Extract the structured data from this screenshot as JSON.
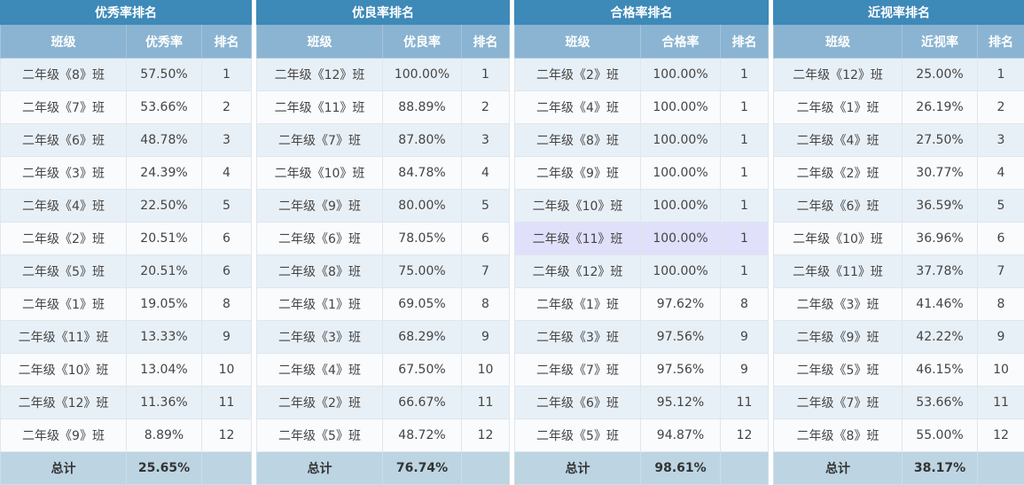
{
  "panels": [
    {
      "title": "优秀率排名",
      "headers": [
        "班级",
        "优秀率",
        "排名"
      ],
      "rows": [
        [
          "二年级《8》班",
          "57.50%",
          "1"
        ],
        [
          "二年级《7》班",
          "53.66%",
          "2"
        ],
        [
          "二年级《6》班",
          "48.78%",
          "3"
        ],
        [
          "二年级《3》班",
          "24.39%",
          "4"
        ],
        [
          "二年级《4》班",
          "22.50%",
          "5"
        ],
        [
          "二年级《2》班",
          "20.51%",
          "6"
        ],
        [
          "二年级《5》班",
          "20.51%",
          "6"
        ],
        [
          "二年级《1》班",
          "19.05%",
          "8"
        ],
        [
          "二年级《11》班",
          "13.33%",
          "9"
        ],
        [
          "二年级《10》班",
          "13.04%",
          "10"
        ],
        [
          "二年级《12》班",
          "11.36%",
          "11"
        ],
        [
          "二年级《9》班",
          "8.89%",
          "12"
        ]
      ],
      "footer": [
        "总计",
        "25.65%",
        ""
      ]
    },
    {
      "title": "优良率排名",
      "headers": [
        "班级",
        "优良率",
        "排名"
      ],
      "rows": [
        [
          "二年级《12》班",
          "100.00%",
          "1"
        ],
        [
          "二年级《11》班",
          "88.89%",
          "2"
        ],
        [
          "二年级《7》班",
          "87.80%",
          "3"
        ],
        [
          "二年级《10》班",
          "84.78%",
          "4"
        ],
        [
          "二年级《9》班",
          "80.00%",
          "5"
        ],
        [
          "二年级《6》班",
          "78.05%",
          "6"
        ],
        [
          "二年级《8》班",
          "75.00%",
          "7"
        ],
        [
          "二年级《1》班",
          "69.05%",
          "8"
        ],
        [
          "二年级《3》班",
          "68.29%",
          "9"
        ],
        [
          "二年级《4》班",
          "67.50%",
          "10"
        ],
        [
          "二年级《2》班",
          "66.67%",
          "11"
        ],
        [
          "二年级《5》班",
          "48.72%",
          "12"
        ]
      ],
      "footer": [
        "总计",
        "76.74%",
        ""
      ]
    },
    {
      "title": "合格率排名",
      "headers": [
        "班级",
        "合格率",
        "排名"
      ],
      "rows": [
        [
          "二年级《2》班",
          "100.00%",
          "1"
        ],
        [
          "二年级《4》班",
          "100.00%",
          "1"
        ],
        [
          "二年级《8》班",
          "100.00%",
          "1"
        ],
        [
          "二年级《9》班",
          "100.00%",
          "1"
        ],
        [
          "二年级《10》班",
          "100.00%",
          "1"
        ],
        [
          "二年级《11》班",
          "100.00%",
          "1"
        ],
        [
          "二年级《12》班",
          "100.00%",
          "1"
        ],
        [
          "二年级《1》班",
          "97.62%",
          "8"
        ],
        [
          "二年级《3》班",
          "97.56%",
          "9"
        ],
        [
          "二年级《7》班",
          "97.56%",
          "9"
        ],
        [
          "二年级《6》班",
          "95.12%",
          "11"
        ],
        [
          "二年级《5》班",
          "94.87%",
          "12"
        ]
      ],
      "footer": [
        "总计",
        "98.61%",
        ""
      ],
      "highlight_row": 5,
      "highlight_color": "#e1e0fb"
    },
    {
      "title": "近视率排名",
      "headers": [
        "班级",
        "近视率",
        "排名"
      ],
      "rows": [
        [
          "二年级《12》班",
          "25.00%",
          "1"
        ],
        [
          "二年级《1》班",
          "26.19%",
          "2"
        ],
        [
          "二年级《4》班",
          "27.50%",
          "3"
        ],
        [
          "二年级《2》班",
          "30.77%",
          "4"
        ],
        [
          "二年级《6》班",
          "36.59%",
          "5"
        ],
        [
          "二年级《10》班",
          "36.96%",
          "6"
        ],
        [
          "二年级《11》班",
          "37.78%",
          "7"
        ],
        [
          "二年级《3》班",
          "41.46%",
          "8"
        ],
        [
          "二年级《9》班",
          "42.22%",
          "9"
        ],
        [
          "二年级《5》班",
          "46.15%",
          "10"
        ],
        [
          "二年级《7》班",
          "53.66%",
          "11"
        ],
        [
          "二年级《8》班",
          "55.00%",
          "12"
        ]
      ],
      "footer": [
        "总计",
        "38.17%",
        ""
      ]
    }
  ],
  "colors": {
    "title_bg": "#3d89b8",
    "header_bg": "#8ab4d1",
    "row_odd": "#e8f0f7",
    "row_even": "#f9fbfd",
    "footer_bg": "#bdd5e3"
  }
}
